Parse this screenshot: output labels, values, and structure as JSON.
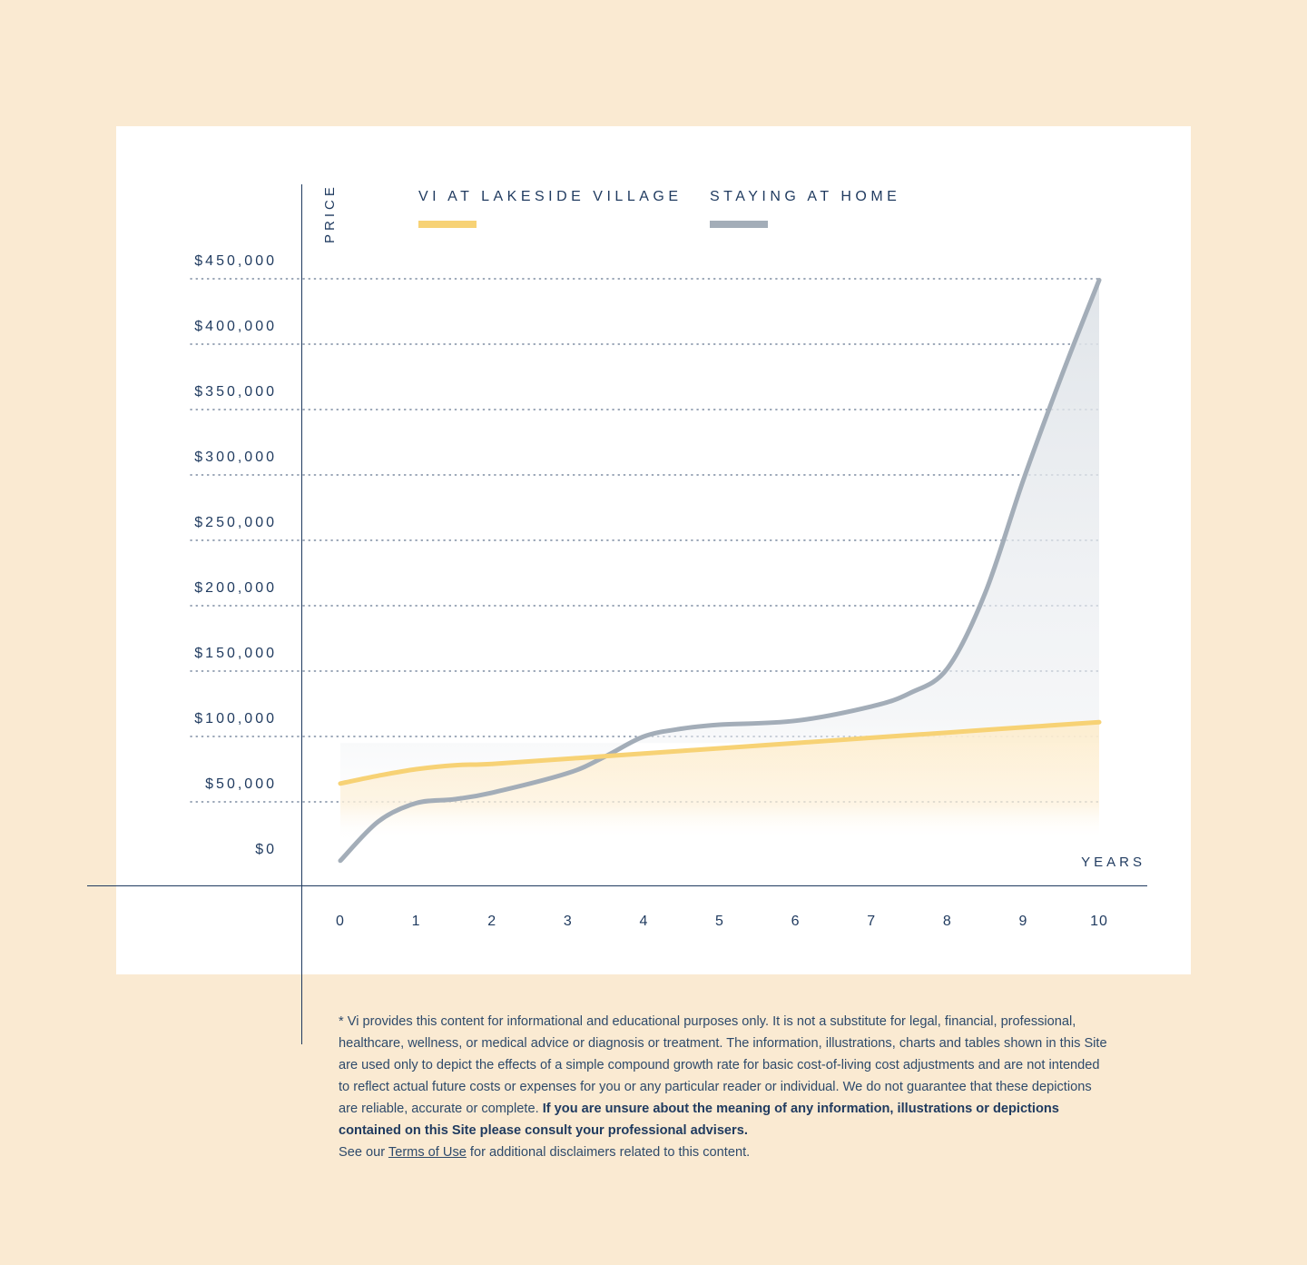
{
  "chart_data": {
    "type": "line",
    "ylabel": "PRICE",
    "xlabel": "YEARS",
    "x": [
      0,
      1,
      2,
      3,
      4,
      5,
      6,
      7,
      8,
      9,
      10
    ],
    "x_tick_labels": [
      "0",
      "1",
      "2",
      "3",
      "4",
      "5",
      "6",
      "7",
      "8",
      "9",
      "10"
    ],
    "y_ticks": [
      0,
      50000,
      100000,
      150000,
      200000,
      250000,
      300000,
      350000,
      400000,
      450000
    ],
    "y_tick_labels": [
      "$0",
      "$50,000",
      "$100,000",
      "$150,000",
      "$200,000",
      "$250,000",
      "$300,000",
      "$350,000",
      "$400,000",
      "$450,000"
    ],
    "ylim": [
      0,
      450000
    ],
    "xlim": [
      0,
      10
    ],
    "grid": "horizontal dotted",
    "legend_position": "top",
    "series": [
      {
        "name": "VI AT LAKESIDE VILLAGE",
        "color": "#f7d275",
        "x": [
          0,
          0.5,
          1,
          1.5,
          2,
          3,
          4,
          5,
          6,
          7,
          8,
          9,
          10
        ],
        "values": [
          64000,
          70000,
          75000,
          78000,
          79000,
          83000,
          87000,
          91000,
          95000,
          99000,
          103000,
          107000,
          111000
        ]
      },
      {
        "name": "STAYING AT HOME",
        "color": "#a3adb8",
        "x": [
          0,
          0.5,
          1,
          1.5,
          2,
          3,
          3.5,
          4,
          4.5,
          5,
          6,
          7,
          7.5,
          8,
          8.5,
          9,
          9.5,
          10
        ],
        "values": [
          5000,
          35000,
          49000,
          52000,
          57000,
          72000,
          85000,
          100000,
          106000,
          109000,
          112000,
          123000,
          133000,
          152000,
          210000,
          296000,
          375000,
          449000
        ]
      }
    ]
  },
  "disclaimer": {
    "text_1": "* Vi provides this content for informational and educational purposes only. It is not a substitute for legal, financial, professional, healthcare, wellness, or medical advice or diagnosis or treatment. The information, illustrations, charts and tables shown in this Site are used only to depict the effects of a simple compound growth rate for basic cost-of-living cost adjustments and are not intended to reflect actual future costs or expenses for you or any particular reader or individual. We do not guarantee that these depictions are reliable, accurate or complete. ",
    "bold_text": "If you are unsure about the meaning of any information, illustrations or depictions contained on this Site please consult your professional advisers.",
    "see_our": "See our ",
    "terms_link": "Terms of Use",
    "tail": " for additional disclaimers related to this content."
  }
}
